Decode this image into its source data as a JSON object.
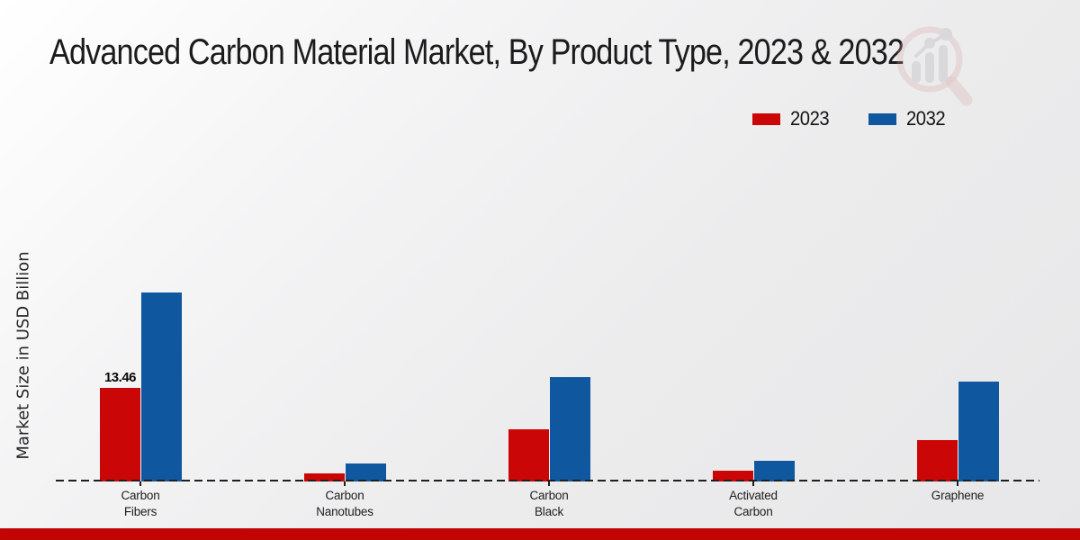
{
  "title_bar": {
    "title": "Advanced Carbon Material Market, By Product Type, 2023 & 2032"
  },
  "colors": {
    "series_2023": "#cb0606",
    "series_2032": "#0f579f",
    "bottom_band": "#c10404",
    "baseline": "#1f1f1f",
    "watermark_pink": "#d6a4a4",
    "watermark_gray": "#c3c3c8"
  },
  "chart_data": {
    "type": "bar",
    "title": "Advanced Carbon Material Market, By Product Type, 2023 & 2032",
    "xlabel": "",
    "ylabel": "Market Size in USD Billion",
    "categories": [
      "Carbon Fibers",
      "Carbon Nanotubes",
      "Carbon Black",
      "Activated Carbon",
      "Graphene"
    ],
    "category_labels": [
      [
        "Carbon",
        "Fibers"
      ],
      [
        "Carbon",
        "Nanotubes"
      ],
      [
        "Carbon",
        "Black"
      ],
      [
        "Activated",
        "Carbon"
      ],
      [
        "Graphene"
      ]
    ],
    "series": [
      {
        "name": "2023",
        "color": "#cb0606",
        "values": [
          13.46,
          1.2,
          7.5,
          1.55,
          5.9
        ]
      },
      {
        "name": "2032",
        "color": "#0f579f",
        "values": [
          27.2,
          2.6,
          15.0,
          3.0,
          14.4
        ]
      }
    ],
    "data_labels": [
      {
        "series_index": 0,
        "category_index": 0,
        "text": "13.46"
      }
    ],
    "ylim": [
      0,
      35
    ],
    "y_axis_ticks_visible": false,
    "grid": false,
    "legend_position": "top-right",
    "baseline_style": "dashed"
  },
  "legend": {
    "items": [
      {
        "label": "2023",
        "color": "#cb0606"
      },
      {
        "label": "2032",
        "color": "#0f579f"
      }
    ]
  }
}
